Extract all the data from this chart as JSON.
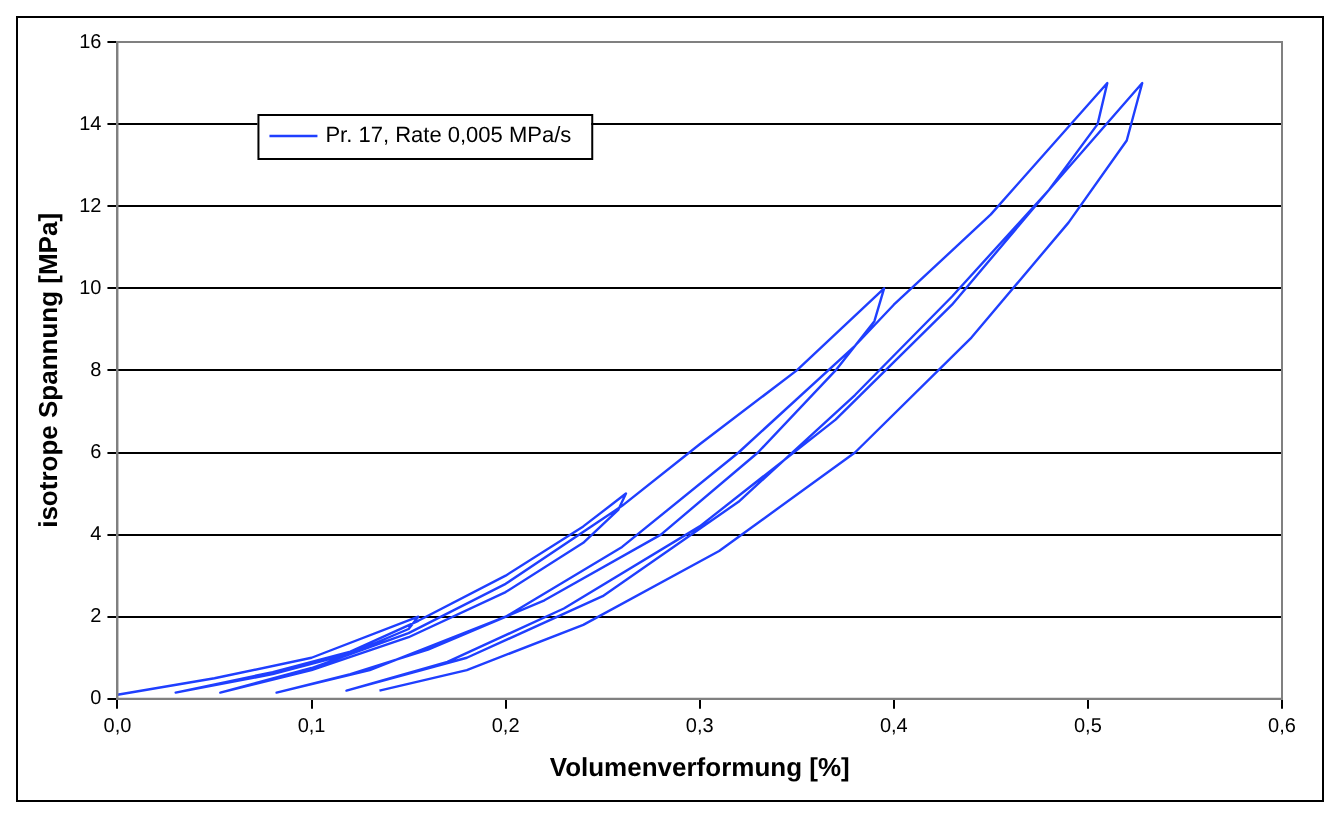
{
  "chart_data": {
    "type": "line",
    "xlabel": "Volumenverformung [%]",
    "ylabel": "isotrope Spannung [MPa]",
    "xlim": [
      0,
      0.6
    ],
    "ylim": [
      0,
      16
    ],
    "xticks": [
      {
        "value": 0,
        "label": "0,0"
      },
      {
        "value": 0.1,
        "label": "0,1"
      },
      {
        "value": 0.2,
        "label": "0,2"
      },
      {
        "value": 0.3,
        "label": "0,3"
      },
      {
        "value": 0.4,
        "label": "0,4"
      },
      {
        "value": 0.5,
        "label": "0,5"
      },
      {
        "value": 0.6,
        "label": "0,6"
      }
    ],
    "yticks": [
      0,
      2,
      4,
      6,
      8,
      10,
      12,
      14,
      16
    ],
    "grid": "y",
    "legend": "top left",
    "marker": "none",
    "line_style": "solid",
    "series": [
      {
        "name": "Pr. 17, Rate 0,005 MPa/s",
        "color": "#1f3fff",
        "x": [
          0,
          0.05,
          0.1,
          0.155,
          0.15,
          0.12,
          0.08,
          0.03,
          0.08,
          0.12,
          0.155,
          0.2,
          0.24,
          0.262,
          0.258,
          0.24,
          0.2,
          0.15,
          0.1,
          0.053,
          0.1,
          0.15,
          0.2,
          0.26,
          0.3,
          0.35,
          0.395,
          0.39,
          0.37,
          0.33,
          0.28,
          0.22,
          0.16,
          0.12,
          0.082,
          0.13,
          0.2,
          0.26,
          0.32,
          0.38,
          0.4,
          0.45,
          0.51,
          0.505,
          0.48,
          0.43,
          0.37,
          0.3,
          0.23,
          0.17,
          0.118,
          0.18,
          0.25,
          0.32,
          0.38,
          0.43,
          0.48,
          0.528,
          0.52,
          0.49,
          0.44,
          0.38,
          0.31,
          0.24,
          0.18,
          0.135
        ],
        "values": [
          0.1,
          0.5,
          1.0,
          2.0,
          1.7,
          1.1,
          0.6,
          0.15,
          0.65,
          1.15,
          1.9,
          3.0,
          4.2,
          5.0,
          4.6,
          3.8,
          2.6,
          1.5,
          0.7,
          0.15,
          0.75,
          1.6,
          2.8,
          4.7,
          6.2,
          8.0,
          10.0,
          9.2,
          8.0,
          6.0,
          4.0,
          2.4,
          1.2,
          0.6,
          0.15,
          0.7,
          2.0,
          3.7,
          6.0,
          8.6,
          9.6,
          11.8,
          15.0,
          14.0,
          12.4,
          9.6,
          6.8,
          4.2,
          2.2,
          0.9,
          0.2,
          1.0,
          2.5,
          4.8,
          7.4,
          9.8,
          12.4,
          15.0,
          13.6,
          11.6,
          8.8,
          6.0,
          3.6,
          1.8,
          0.7,
          0.2
        ]
      }
    ]
  }
}
